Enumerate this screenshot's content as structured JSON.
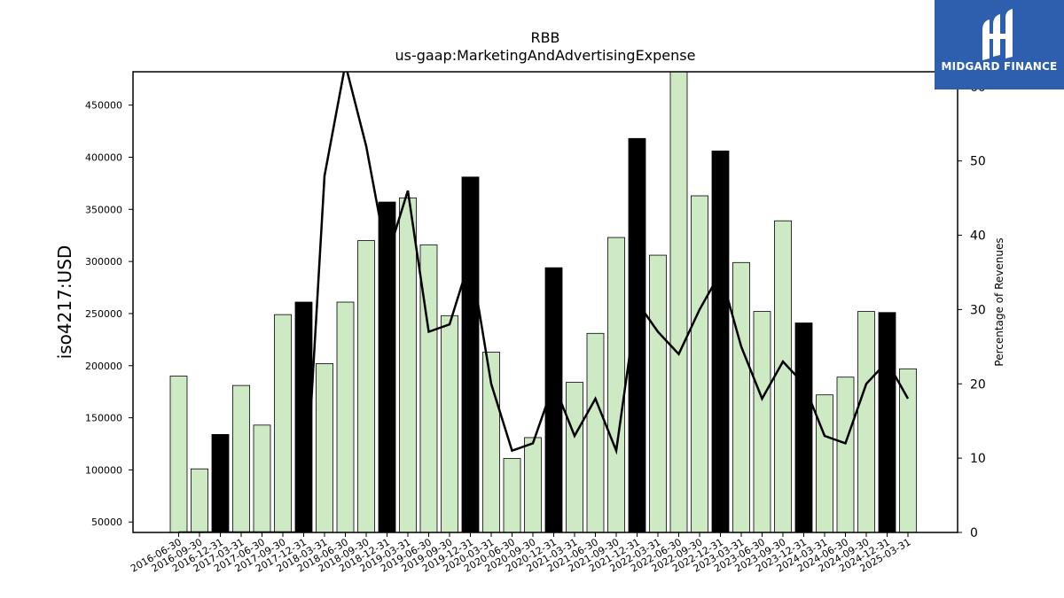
{
  "chart_data": {
    "type": "bar",
    "title": "RBB",
    "subtitle": "us-gaap:MarketingAndAdvertisingExpense",
    "ylabel": "iso4217:USD",
    "ylabel_right": "Percentage of Revenues",
    "ylim": [
      40000,
      482000
    ],
    "ylim_right": [
      0,
      62
    ],
    "yticks": [
      50000,
      100000,
      150000,
      200000,
      250000,
      300000,
      350000,
      400000,
      450000
    ],
    "yticks_right": [
      0,
      10,
      20,
      30,
      40,
      50,
      60
    ],
    "categories": [
      "2016-06-30",
      "2016-09-30",
      "2016-12-31",
      "2017-03-31",
      "2017-06-30",
      "2017-09-30",
      "2017-12-31",
      "2018-03-31",
      "2018-06-30",
      "2018-09-30",
      "2018-12-31",
      "2019-03-31",
      "2019-06-30",
      "2019-09-30",
      "2019-12-31",
      "2020-03-31",
      "2020-06-30",
      "2020-09-30",
      "2020-12-31",
      "2021-03-31",
      "2021-06-30",
      "2021-09-30",
      "2021-12-31",
      "2022-03-31",
      "2022-06-30",
      "2022-09-30",
      "2022-12-31",
      "2023-03-31",
      "2023-06-30",
      "2023-09-30",
      "2023-12-31",
      "2024-03-31",
      "2024-06-30",
      "2024-09-30",
      "2024-12-31",
      "2025-03-31"
    ],
    "series": [
      {
        "type": "bar",
        "values": [
          190000,
          101000,
          134000,
          181000,
          143000,
          249000,
          261000,
          202000,
          261000,
          320000,
          357000,
          361000,
          316000,
          248000,
          381000,
          213000,
          111000,
          131000,
          294000,
          184000,
          231000,
          323000,
          418000,
          306000,
          482000,
          363000,
          406000,
          299000,
          252000,
          339000,
          241000,
          172000,
          189000,
          252000,
          251000,
          197000
        ],
        "highlight_categories": [
          "2016-12-31",
          "2017-12-31",
          "2018-12-31",
          "2019-12-31",
          "2020-12-31",
          "2021-12-31",
          "2022-12-31",
          "2023-12-31",
          "2024-12-31"
        ],
        "color": "#cdeac5",
        "highlight_color": "#000000"
      },
      {
        "type": "line",
        "axis": "right",
        "values": [
          0,
          0,
          0,
          0,
          0,
          0,
          0,
          48,
          63,
          52,
          37,
          46,
          27,
          28,
          37,
          20,
          11,
          12,
          20,
          13,
          18,
          11,
          31,
          27,
          24,
          30,
          35,
          25,
          18,
          23,
          20,
          13,
          12,
          20,
          23,
          18
        ],
        "color": "#000000"
      }
    ]
  },
  "logo": {
    "text": "MIDGARD FINANCE"
  }
}
